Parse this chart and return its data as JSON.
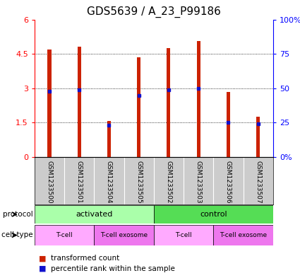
{
  "title": "GDS5639 / A_23_P99186",
  "samples": [
    "GSM1233500",
    "GSM1233501",
    "GSM1233504",
    "GSM1233505",
    "GSM1233502",
    "GSM1233503",
    "GSM1233506",
    "GSM1233507"
  ],
  "bar_heights": [
    4.7,
    4.82,
    1.58,
    4.35,
    4.75,
    5.05,
    2.85,
    1.75
  ],
  "percentile_ranks": [
    48,
    49,
    23,
    45,
    49,
    50,
    25,
    24
  ],
  "bar_color": "#cc2200",
  "dot_color": "#1111cc",
  "ylim_left": [
    0,
    6
  ],
  "ylim_right": [
    0,
    100
  ],
  "yticks_left": [
    0,
    1.5,
    3.0,
    4.5,
    6
  ],
  "yticks_right": [
    0,
    25,
    50,
    75,
    100
  ],
  "ytick_labels_left": [
    "0",
    "1.5",
    "3",
    "4.5",
    "6"
  ],
  "ytick_labels_right": [
    "0%",
    "25",
    "50",
    "75",
    "100%"
  ],
  "protocol_labels": [
    "activated",
    "control"
  ],
  "protocol_colors": [
    "#aaffaa",
    "#55dd55"
  ],
  "celltype_labels": [
    "T-cell",
    "T-cell exosome",
    "T-cell",
    "T-cell exosome"
  ],
  "celltype_colors_light": "#ffaaff",
  "celltype_colors_dark": "#ee77ee",
  "legend_labels": [
    "transformed count",
    "percentile rank within the sample"
  ],
  "background_color": "#ffffff",
  "sample_bg_color": "#cccccc",
  "title_fontsize": 11,
  "tick_fontsize": 8,
  "bar_width": 0.12
}
